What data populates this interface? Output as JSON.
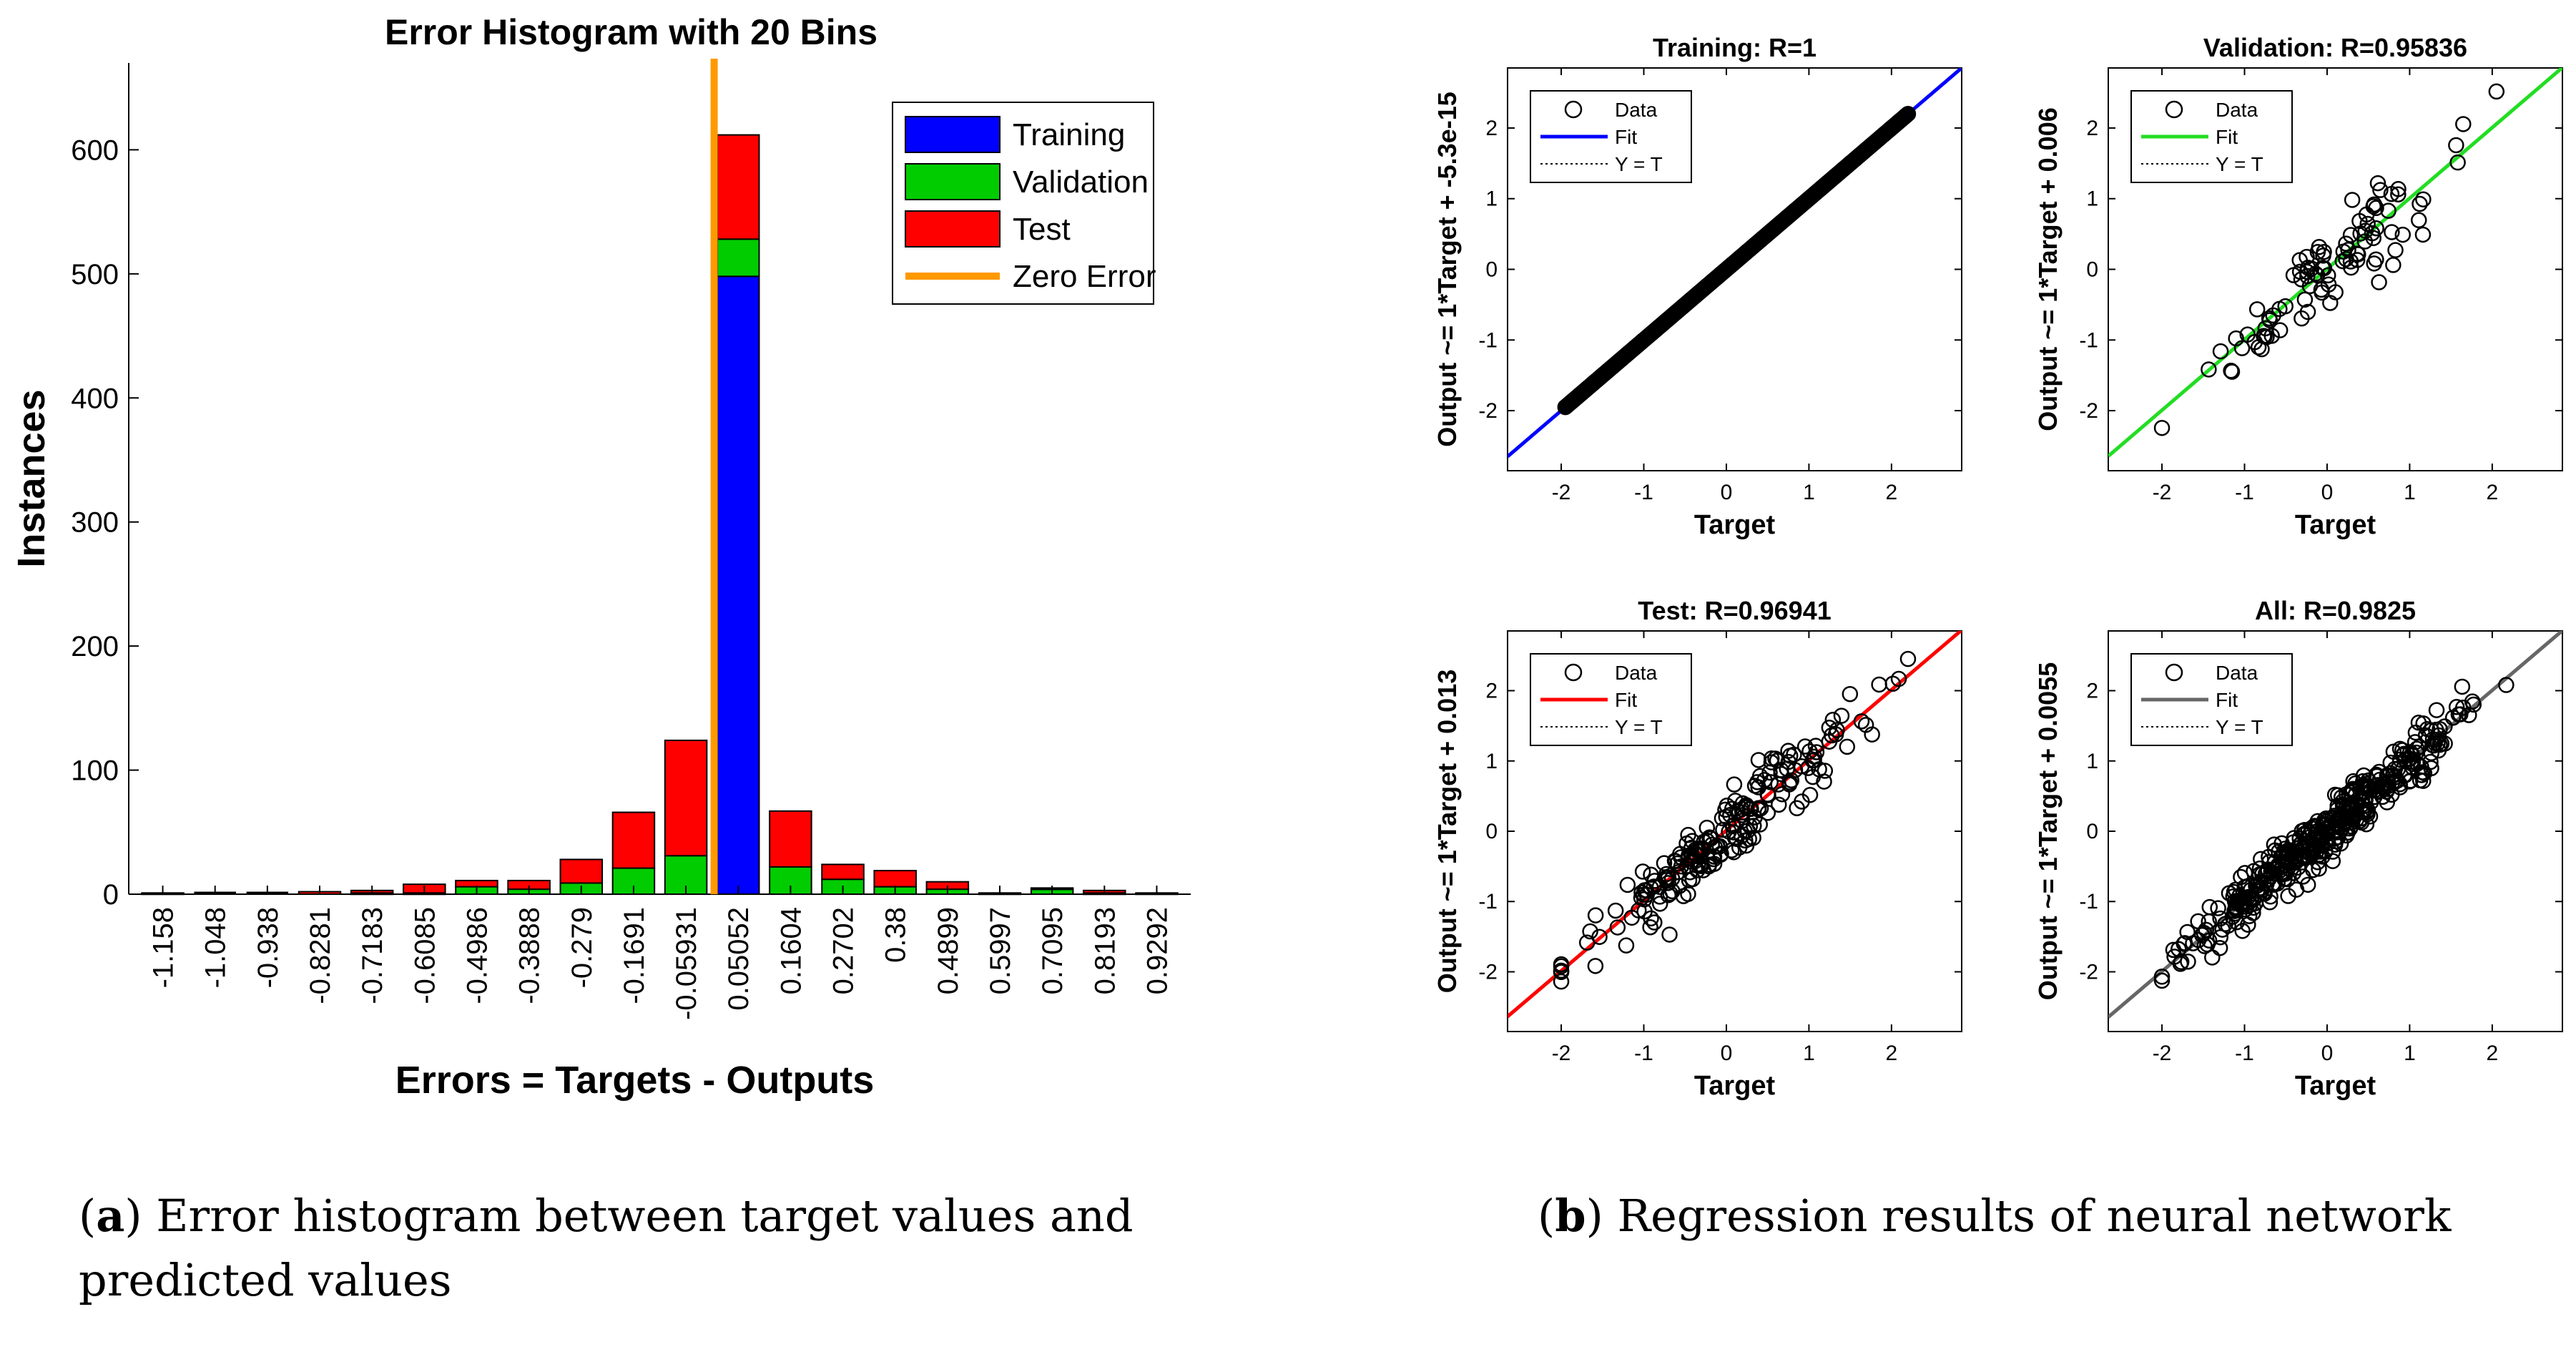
{
  "figure_captions": {
    "a": {
      "label": "a",
      "text": "Error histogram between target values and predicted values"
    },
    "b": {
      "label": "b",
      "text": "Regression results of neural network"
    }
  },
  "colors": {
    "training": "#0000ff",
    "validation": "#00cc00",
    "test": "#ff0000",
    "zero_error": "#ff9900",
    "all_fit": "#666666",
    "validation_fit": "#22dd22"
  },
  "chart_data": [
    {
      "type": "bar",
      "id": "histogram",
      "title": "Error Histogram with 20 Bins",
      "xlabel": "Errors = Targets - Outputs",
      "ylabel": "Instances",
      "ylim": [
        0,
        670
      ],
      "yticks": [
        0,
        100,
        200,
        300,
        400,
        500,
        600
      ],
      "categories": [
        "-1.158",
        "-1.048",
        "-0.938",
        "-0.8281",
        "-0.7183",
        "-0.6085",
        "-0.4986",
        "-0.3888",
        "-0.279",
        "-0.1691",
        "-0.05931",
        "0.05052",
        "0.1604",
        "0.2702",
        "0.38",
        "0.4899",
        "0.5997",
        "0.7095",
        "0.8193",
        "0.9292"
      ],
      "stacked": true,
      "series": [
        {
          "name": "Training",
          "values": [
            0,
            0,
            0,
            0,
            0,
            0,
            0,
            0,
            0,
            0,
            0,
            498,
            0,
            0,
            0,
            0,
            0,
            0,
            0,
            0
          ]
        },
        {
          "name": "Validation",
          "values": [
            0,
            0,
            0,
            0,
            1,
            1,
            6,
            4,
            9,
            21,
            31,
            30,
            22,
            12,
            6,
            4,
            0,
            4,
            1,
            0
          ]
        },
        {
          "name": "Test",
          "values": [
            1,
            0,
            0,
            2,
            2,
            7,
            5,
            7,
            19,
            45,
            93,
            84,
            45,
            12,
            13,
            6,
            1,
            1,
            2,
            1
          ]
        }
      ],
      "zero_error_label": "Zero Error",
      "zero_error_x": 0,
      "legend_position": "top-right"
    },
    {
      "type": "scatter",
      "id": "training",
      "title": "Training: R=1",
      "xlabel": "Target",
      "ylabel": "Output ~= 1*Target + -5.3e-15",
      "xlim": [
        -2.65,
        2.85
      ],
      "ylim": [
        -2.85,
        2.85
      ],
      "xticks": [
        -2,
        -1,
        0,
        1,
        2
      ],
      "yticks": [
        -2,
        -1,
        0,
        1,
        2
      ],
      "fit": {
        "slope": 1,
        "intercept": 0
      },
      "points_range": [
        -1.95,
        2.2
      ],
      "spread": 0,
      "legend": [
        "Data",
        "Fit",
        "Y = T"
      ],
      "legend_position": "top-left"
    },
    {
      "type": "scatter",
      "id": "validation",
      "title": "Validation: R=0.95836",
      "xlabel": "Target",
      "ylabel": "Output ~= 1*Target + 0.006",
      "xlim": [
        -2.65,
        2.85
      ],
      "ylim": [
        -2.85,
        2.85
      ],
      "xticks": [
        -2,
        -1,
        0,
        1,
        2
      ],
      "yticks": [
        -2,
        -1,
        0,
        1,
        2
      ],
      "fit": {
        "slope": 1,
        "intercept": 0.006
      },
      "points_range": [
        -2.0,
        2.1
      ],
      "spread": 0.3,
      "legend": [
        "Data",
        "Fit",
        "Y = T"
      ],
      "legend_position": "top-left"
    },
    {
      "type": "scatter",
      "id": "test",
      "title": "Test: R=0.96941",
      "xlabel": "Target",
      "ylabel": "Output ~= 1*Target + 0.013",
      "xlim": [
        -2.65,
        2.85
      ],
      "ylim": [
        -2.85,
        2.85
      ],
      "xticks": [
        -2,
        -1,
        0,
        1,
        2
      ],
      "yticks": [
        -2,
        -1,
        0,
        1,
        2
      ],
      "fit": {
        "slope": 1,
        "intercept": 0.013
      },
      "points_range": [
        -2.0,
        2.2
      ],
      "spread": 0.25,
      "legend": [
        "Data",
        "Fit",
        "Y = T"
      ],
      "legend_position": "top-left"
    },
    {
      "type": "scatter",
      "id": "all",
      "title": "All: R=0.9825",
      "xlabel": "Target",
      "ylabel": "Output ~= 1*Target + 0.0055",
      "xlim": [
        -2.65,
        2.85
      ],
      "ylim": [
        -2.85,
        2.85
      ],
      "xticks": [
        -2,
        -1,
        0,
        1,
        2
      ],
      "yticks": [
        -2,
        -1,
        0,
        1,
        2
      ],
      "fit": {
        "slope": 1,
        "intercept": 0.0055
      },
      "points_range": [
        -2.0,
        2.2
      ],
      "spread": 0.18,
      "legend": [
        "Data",
        "Fit",
        "Y = T"
      ],
      "legend_position": "top-left"
    }
  ]
}
